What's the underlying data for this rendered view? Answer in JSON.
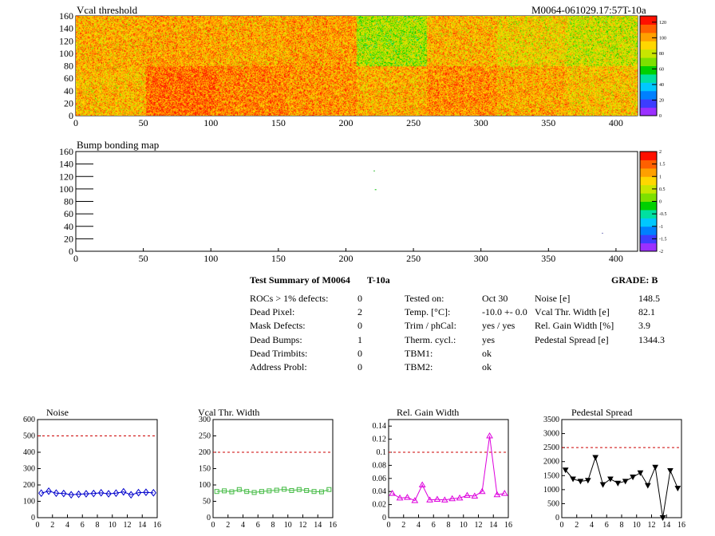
{
  "header": {
    "module_id": "M0064-061029.17:57T-10a"
  },
  "charts": {
    "threshold": {
      "title": "Vcal threshold",
      "x_ticks": [
        "0",
        "50",
        "100",
        "150",
        "200",
        "250",
        "300",
        "350",
        "400"
      ],
      "y_ticks": [
        "0",
        "20",
        "40",
        "60",
        "80",
        "100",
        "120",
        "140",
        "160"
      ],
      "z_ticks": [
        "0",
        "20",
        "40",
        "60",
        "80",
        "100",
        "120"
      ]
    },
    "bump": {
      "title": "Bump bonding map",
      "x_ticks": [
        "0",
        "50",
        "100",
        "150",
        "200",
        "250",
        "300",
        "350",
        "400"
      ],
      "y_ticks": [
        "0",
        "20",
        "40",
        "60",
        "80",
        "100",
        "120",
        "140",
        "160"
      ],
      "z_ticks": [
        "-2",
        "-1.5",
        "-1",
        "-0.5",
        "0",
        "0.5",
        "1",
        "1.5",
        "2"
      ]
    }
  },
  "summary": {
    "title": "Test Summary of M0064",
    "temp_label": "T-10a",
    "grade": "GRADE:  B",
    "defects": [
      {
        "label": "ROCs > 1% defects:",
        "value": "0"
      },
      {
        "label": "Dead Pixel:",
        "value": "2"
      },
      {
        "label": "Mask Defects:",
        "value": "0"
      },
      {
        "label": "Dead Bumps:",
        "value": "1"
      },
      {
        "label": "Dead Trimbits:",
        "value": "0"
      },
      {
        "label": "Address Probl:",
        "value": "0"
      }
    ],
    "conditions": [
      {
        "label": "Tested on:",
        "value": "Oct 30"
      },
      {
        "label": "Temp. [°C]:",
        "value": "-10.0 +- 0.0"
      },
      {
        "label": "Trim / phCal:",
        "value": "yes / yes"
      },
      {
        "label": "Therm. cycl.:",
        "value": "yes"
      },
      {
        "label": "TBM1:",
        "value": "ok"
      },
      {
        "label": "TBM2:",
        "value": "ok"
      }
    ],
    "performance": [
      {
        "label": "Noise [e]",
        "value": "148.5"
      },
      {
        "label": "Vcal Thr. Width [e]",
        "value": "82.1"
      },
      {
        "label": "Rel. Gain Width [%]",
        "value": "3.9"
      },
      {
        "label": "Pedestal Spread [e]",
        "value": "1344.3"
      }
    ]
  },
  "chart_data": [
    {
      "type": "heatmap",
      "title": "Vcal threshold",
      "xlim": [
        0,
        416
      ],
      "ylim": [
        0,
        160
      ],
      "zlim": [
        0,
        128
      ],
      "x_ticks": [
        0,
        50,
        100,
        150,
        200,
        250,
        300,
        350,
        400
      ],
      "y_ticks": [
        0,
        20,
        40,
        60,
        80,
        100,
        120,
        140,
        160
      ],
      "palette": [
        "#9b30ff",
        "#3d3dff",
        "#0080ff",
        "#00c8ff",
        "#00e0a0",
        "#00d000",
        "#7de000",
        "#c8e600",
        "#ffd700",
        "#ffa000",
        "#ff6000",
        "#ff1000"
      ],
      "roc_mean_values": {
        "top": [
          98,
          100,
          99,
          101,
          76,
          97,
          90,
          82
        ],
        "bottom": [
          96,
          110,
          106,
          103,
          98,
          104,
          99,
          94
        ]
      }
    },
    {
      "type": "heatmap",
      "title": "Bump bonding map",
      "xlim": [
        0,
        416
      ],
      "ylim": [
        0,
        160
      ],
      "zlim": [
        -2,
        2
      ],
      "x_ticks": [
        0,
        50,
        100,
        150,
        200,
        250,
        300,
        350,
        400
      ],
      "y_ticks": [
        0,
        20,
        40,
        60,
        80,
        100,
        120,
        140,
        160
      ],
      "points": [
        {
          "x": 222,
          "y": 99,
          "z": 0.3,
          "color": "#33cc33"
        },
        {
          "x": 221,
          "y": 129,
          "z": 0.3,
          "color": "#66cc66"
        },
        {
          "x": 390,
          "y": 29,
          "z": 0.2,
          "color": "#9999cc"
        }
      ]
    },
    {
      "type": "line",
      "title": "Noise",
      "xlim": [
        0,
        16
      ],
      "ylim": [
        0,
        600
      ],
      "x_ticks": [
        0,
        2,
        4,
        6,
        8,
        10,
        12,
        14,
        16
      ],
      "y_ticks": [
        0,
        100,
        200,
        300,
        400,
        500,
        600
      ],
      "threshold": 500,
      "color": "#0000cc",
      "marker": "diamond",
      "x": [
        0.5,
        1.5,
        2.5,
        3.5,
        4.5,
        5.5,
        6.5,
        7.5,
        8.5,
        9.5,
        10.5,
        11.5,
        12.5,
        13.5,
        14.5,
        15.5
      ],
      "values": [
        150,
        162,
        150,
        148,
        140,
        143,
        146,
        148,
        152,
        146,
        150,
        158,
        140,
        153,
        155,
        152
      ]
    },
    {
      "type": "line",
      "title": "Vcal Thr. Width",
      "xlim": [
        0,
        16
      ],
      "ylim": [
        0,
        300
      ],
      "x_ticks": [
        0,
        2,
        4,
        6,
        8,
        10,
        12,
        14,
        16
      ],
      "y_ticks": [
        0,
        50,
        100,
        150,
        200,
        250,
        300
      ],
      "threshold": 200,
      "color": "#44bb44",
      "marker": "square",
      "x": [
        0.5,
        1.5,
        2.5,
        3.5,
        4.5,
        5.5,
        6.5,
        7.5,
        8.5,
        9.5,
        10.5,
        11.5,
        12.5,
        13.5,
        14.5,
        15.5
      ],
      "values": [
        80,
        82,
        79,
        86,
        80,
        77,
        80,
        82,
        84,
        87,
        83,
        86,
        83,
        80,
        79,
        86
      ]
    },
    {
      "type": "line",
      "title": "Rel. Gain Width",
      "xlim": [
        0,
        16
      ],
      "ylim": [
        0,
        0.15
      ],
      "x_ticks": [
        0,
        2,
        4,
        6,
        8,
        10,
        12,
        14,
        16
      ],
      "y_ticks": [
        0,
        0.02,
        0.04,
        0.06,
        0.08,
        0.1,
        0.12,
        0.14
      ],
      "threshold": 0.1,
      "color": "#dd00dd",
      "marker": "triangle",
      "x": [
        0.5,
        1.5,
        2.5,
        3.5,
        4.5,
        5.5,
        6.5,
        7.5,
        8.5,
        9.5,
        10.5,
        11.5,
        12.5,
        13.5,
        14.5,
        15.5
      ],
      "values": [
        0.037,
        0.03,
        0.031,
        0.026,
        0.05,
        0.027,
        0.028,
        0.027,
        0.029,
        0.03,
        0.034,
        0.033,
        0.04,
        0.125,
        0.035,
        0.037
      ]
    },
    {
      "type": "line",
      "title": "Pedestal Spread",
      "xlim": [
        0,
        16
      ],
      "ylim": [
        0,
        3500
      ],
      "x_ticks": [
        0,
        2,
        4,
        6,
        8,
        10,
        12,
        14,
        16
      ],
      "y_ticks": [
        0,
        500,
        1000,
        1500,
        2000,
        2500,
        3000,
        3500
      ],
      "threshold": 2500,
      "color": "#000000",
      "marker": "triangle-down",
      "x": [
        0.5,
        1.5,
        2.5,
        3.5,
        4.5,
        5.5,
        6.5,
        7.5,
        8.5,
        9.5,
        10.5,
        11.5,
        12.5,
        13.5,
        14.5,
        15.5
      ],
      "values": [
        1700,
        1380,
        1300,
        1330,
        2150,
        1180,
        1380,
        1230,
        1300,
        1450,
        1600,
        1150,
        1800,
        0,
        1680,
        1050
      ]
    }
  ]
}
